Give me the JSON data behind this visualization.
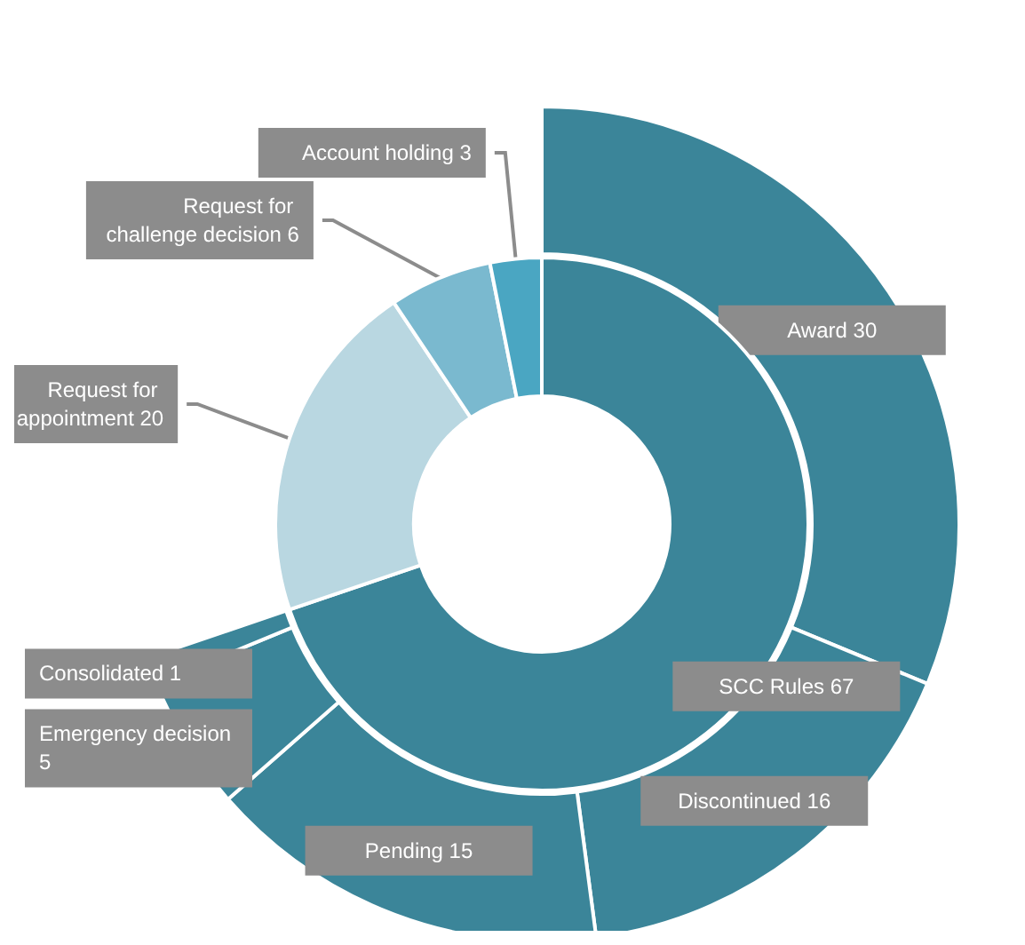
{
  "chart_data": [
    {
      "type": "donut",
      "categories": [
        "SCC Rules 67",
        "Request for appointment 20",
        "Request for challenge decision 6",
        "Account holding 3"
      ],
      "values": [
        67,
        20,
        6,
        3
      ],
      "colors": [
        "#3b8599",
        "#b9d7e1",
        "#7ab9cf",
        "#4aa6c2"
      ],
      "legend": false
    },
    {
      "type": "donut",
      "categories": [
        "Award 30",
        "Discontinued 16",
        "Pending 15",
        "Emergency decision 5",
        "Consolidated 1"
      ],
      "values": [
        30,
        16,
        15,
        5,
        1
      ],
      "colors": [
        "#3b8599",
        "#3b8599",
        "#3b8599",
        "#3b8599",
        "#3b8599"
      ],
      "legend": false
    }
  ]
}
